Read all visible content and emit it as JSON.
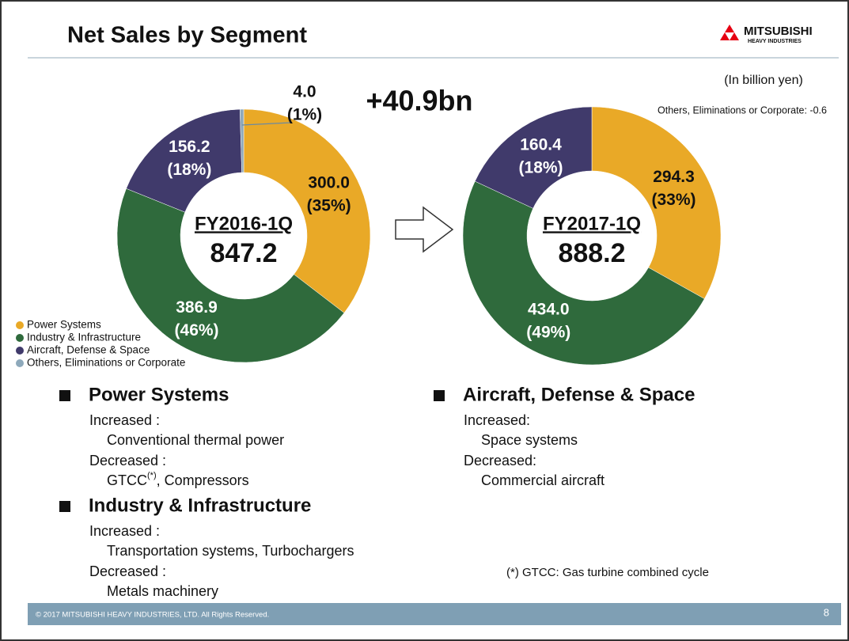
{
  "header": {
    "title": "Net Sales by Segment",
    "logo_top": "MITSUBISHI",
    "logo_bottom": "HEAVY INDUSTRIES"
  },
  "unit_note": "(In billion yen)",
  "others_note": "Others, Eliminations or Corporate: -0.6",
  "delta": "+40.9bn",
  "chart_data": [
    {
      "type": "pie",
      "donut": true,
      "center_title": "FY2016-1Q",
      "total": 847.2,
      "categories": [
        "Power Systems",
        "Industry & Infrastructure",
        "Aircraft, Defense & Space",
        "Others, Eliminations or Corporate"
      ],
      "values": [
        300.0,
        386.9,
        156.2,
        4.0
      ],
      "value_labels": [
        "300.0",
        "386.9",
        "156.2",
        "4.0"
      ],
      "percent_labels": [
        "(35%)",
        "(46%)",
        "(18%)",
        "(1%)"
      ],
      "colors": [
        "#e9a927",
        "#2f6a3c",
        "#403a6b",
        "#8ea9bb"
      ]
    },
    {
      "type": "pie",
      "donut": true,
      "center_title": "FY2017-1Q",
      "total": 888.2,
      "categories": [
        "Power Systems",
        "Industry & Infrastructure",
        "Aircraft, Defense & Space"
      ],
      "values": [
        294.3,
        434.0,
        160.4
      ],
      "value_labels": [
        "294.3",
        "434.0",
        "160.4"
      ],
      "percent_labels": [
        "(33%)",
        "(49%)",
        "(18%)"
      ],
      "colors": [
        "#e9a927",
        "#2f6a3c",
        "#403a6b"
      ]
    }
  ],
  "sections": [
    {
      "heading": "Power Systems",
      "items": [
        {
          "label": "Increased :",
          "detail": [
            "Conventional thermal power"
          ]
        },
        {
          "label": "Decreased :",
          "detail": [
            "GTCC",
            "(*)",
            ", Compressors"
          ]
        }
      ]
    },
    {
      "heading": "Industry & Infrastructure",
      "items": [
        {
          "label": "Increased :",
          "detail": [
            "Transportation systems, Turbochargers"
          ]
        },
        {
          "label": "Decreased :",
          "detail": [
            "Metals machinery"
          ]
        }
      ]
    },
    {
      "heading": "Aircraft, Defense & Space",
      "items": [
        {
          "label": "Increased:",
          "detail": [
            "Space systems"
          ]
        },
        {
          "label": "Decreased:",
          "detail": [
            "Commercial aircraft"
          ]
        }
      ]
    }
  ],
  "footnote": "(*) GTCC:  Gas turbine combined cycle",
  "footer": {
    "copyright": "© 2017 MITSUBISHI HEAVY INDUSTRIES, LTD.  All Rights Reserved.",
    "page": 8
  }
}
